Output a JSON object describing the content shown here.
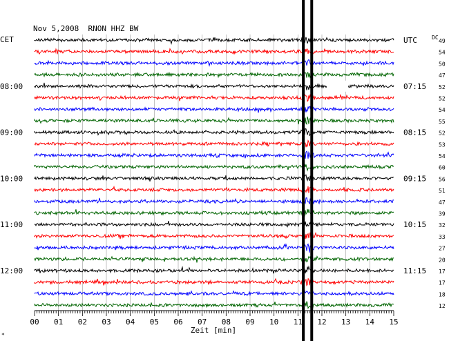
{
  "chart_data": {
    "type": "line",
    "title": "Nov 5,2008  RNON HHZ BW",
    "left_zone_label": "CET",
    "right_zone_label": "UTC",
    "dc_label": "DC",
    "xlabel": "Zeit [min]",
    "xlim": [
      0,
      15
    ],
    "x_ticks": [
      "00",
      "01",
      "02",
      "03",
      "04",
      "05",
      "06",
      "07",
      "08",
      "09",
      "10",
      "11",
      "12",
      "13",
      "14",
      "15"
    ],
    "trace_colors": [
      "#000000",
      "#ff0000",
      "#0000ff",
      "#006400"
    ],
    "left_hour_labels": [
      {
        "row": 4,
        "label": "08:00"
      },
      {
        "row": 8,
        "label": "09:00"
      },
      {
        "row": 12,
        "label": "10:00"
      },
      {
        "row": 16,
        "label": "11:00"
      },
      {
        "row": 20,
        "label": "12:00"
      }
    ],
    "right_hour_labels": [
      {
        "row": 0,
        "label": "UTC"
      },
      {
        "row": 4,
        "label": "07:15"
      },
      {
        "row": 8,
        "label": "08:15"
      },
      {
        "row": 12,
        "label": "09:15"
      },
      {
        "row": 16,
        "label": "10:15"
      },
      {
        "row": 20,
        "label": "11:15"
      }
    ],
    "dc_values": [
      49,
      54,
      50,
      47,
      52,
      52,
      54,
      55,
      52,
      53,
      54,
      60,
      56,
      51,
      47,
      39,
      32,
      33,
      27,
      20,
      17,
      17,
      18,
      12
    ],
    "event_minute": 11.4,
    "event_width_minutes": 0.35,
    "gap_segment": {
      "row": 4,
      "start_minute": 12.2,
      "end_minute": 13.1
    },
    "small_mark": "*"
  }
}
